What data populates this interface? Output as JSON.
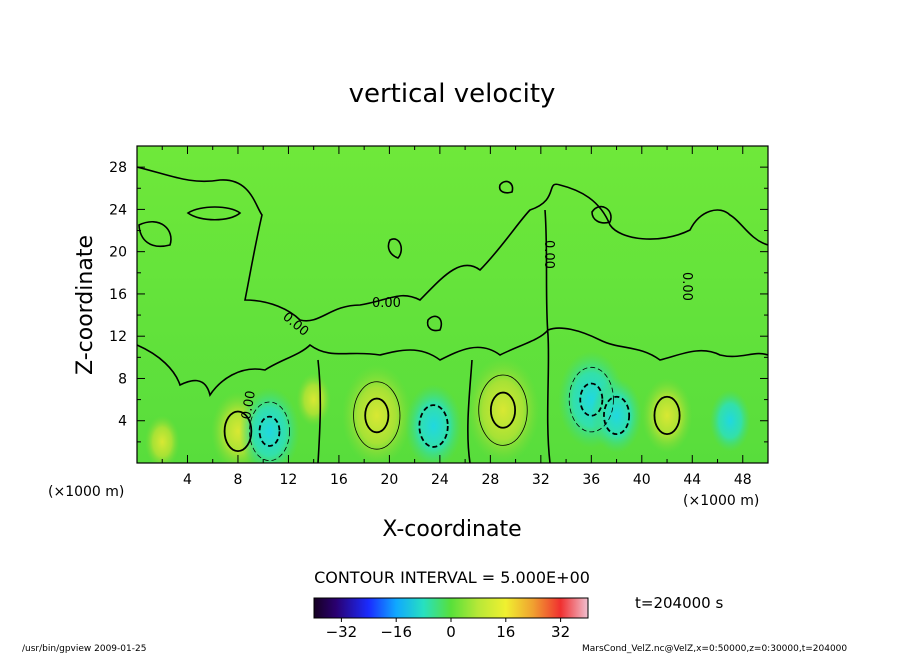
{
  "chart_data": {
    "type": "heatmap",
    "title": "vertical velocity",
    "xlabel": "X-coordinate",
    "ylabel": "Z-coordinate",
    "x_unit": "(×1000 m)",
    "y_unit": "(×1000 m)",
    "xlim": [
      0,
      50
    ],
    "ylim": [
      0,
      30
    ],
    "x_ticks": [
      "4",
      "8",
      "12",
      "16",
      "20",
      "24",
      "28",
      "32",
      "36",
      "40",
      "44",
      "48"
    ],
    "y_ticks": [
      "4",
      "8",
      "12",
      "16",
      "20",
      "24",
      "28"
    ],
    "contour_interval_text": "CONTOUR INTERVAL = 5.000E+00",
    "contour_labels": [
      "0.00",
      "0.00",
      "0.00",
      "0.00",
      "0.00"
    ],
    "colorbar": {
      "range": [
        -40,
        40
      ],
      "ticks": [
        "−32",
        "−16",
        "0",
        "16",
        "32"
      ]
    },
    "time_label": "t=204000 s",
    "cells": [
      {
        "x": 2,
        "z": 2,
        "w": 2
      },
      {
        "x": 8,
        "z": 3,
        "w": 8
      },
      {
        "x": 10.5,
        "z": 3,
        "w": -10
      },
      {
        "x": 14,
        "z": 6,
        "w": 2
      },
      {
        "x": 19,
        "z": 4.5,
        "w": 13
      },
      {
        "x": 23.5,
        "z": 3.5,
        "w": -9
      },
      {
        "x": 29,
        "z": 5,
        "w": 14
      },
      {
        "x": 36,
        "z": 6,
        "w": -12
      },
      {
        "x": 38,
        "z": 4.5,
        "w": -7
      },
      {
        "x": 42,
        "z": 4.5,
        "w": 7
      },
      {
        "x": 47,
        "z": 4,
        "w": -4
      }
    ]
  },
  "footer": {
    "left_text": "/usr/bin/gpview   2009-01-25",
    "right_text": "MarsCond_VelZ.nc@VelZ,x=0:50000,z=0:30000,t=204000"
  }
}
